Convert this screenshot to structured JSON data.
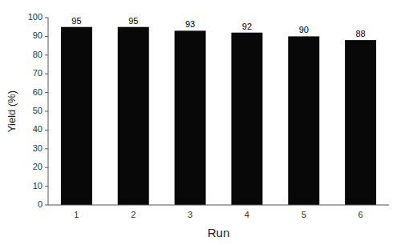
{
  "chart_data": {
    "type": "bar",
    "categories": [
      "1",
      "2",
      "3",
      "4",
      "5",
      "6"
    ],
    "values": [
      95,
      95,
      93,
      92,
      90,
      88
    ],
    "color": "#080808",
    "xlabel": "Run",
    "ylabel": "Yield (%)",
    "ylim": [
      0,
      100
    ],
    "yticks": [
      0,
      10,
      20,
      30,
      40,
      50,
      60,
      70,
      80,
      90,
      100
    ],
    "data_labels": true,
    "grid": false
  }
}
